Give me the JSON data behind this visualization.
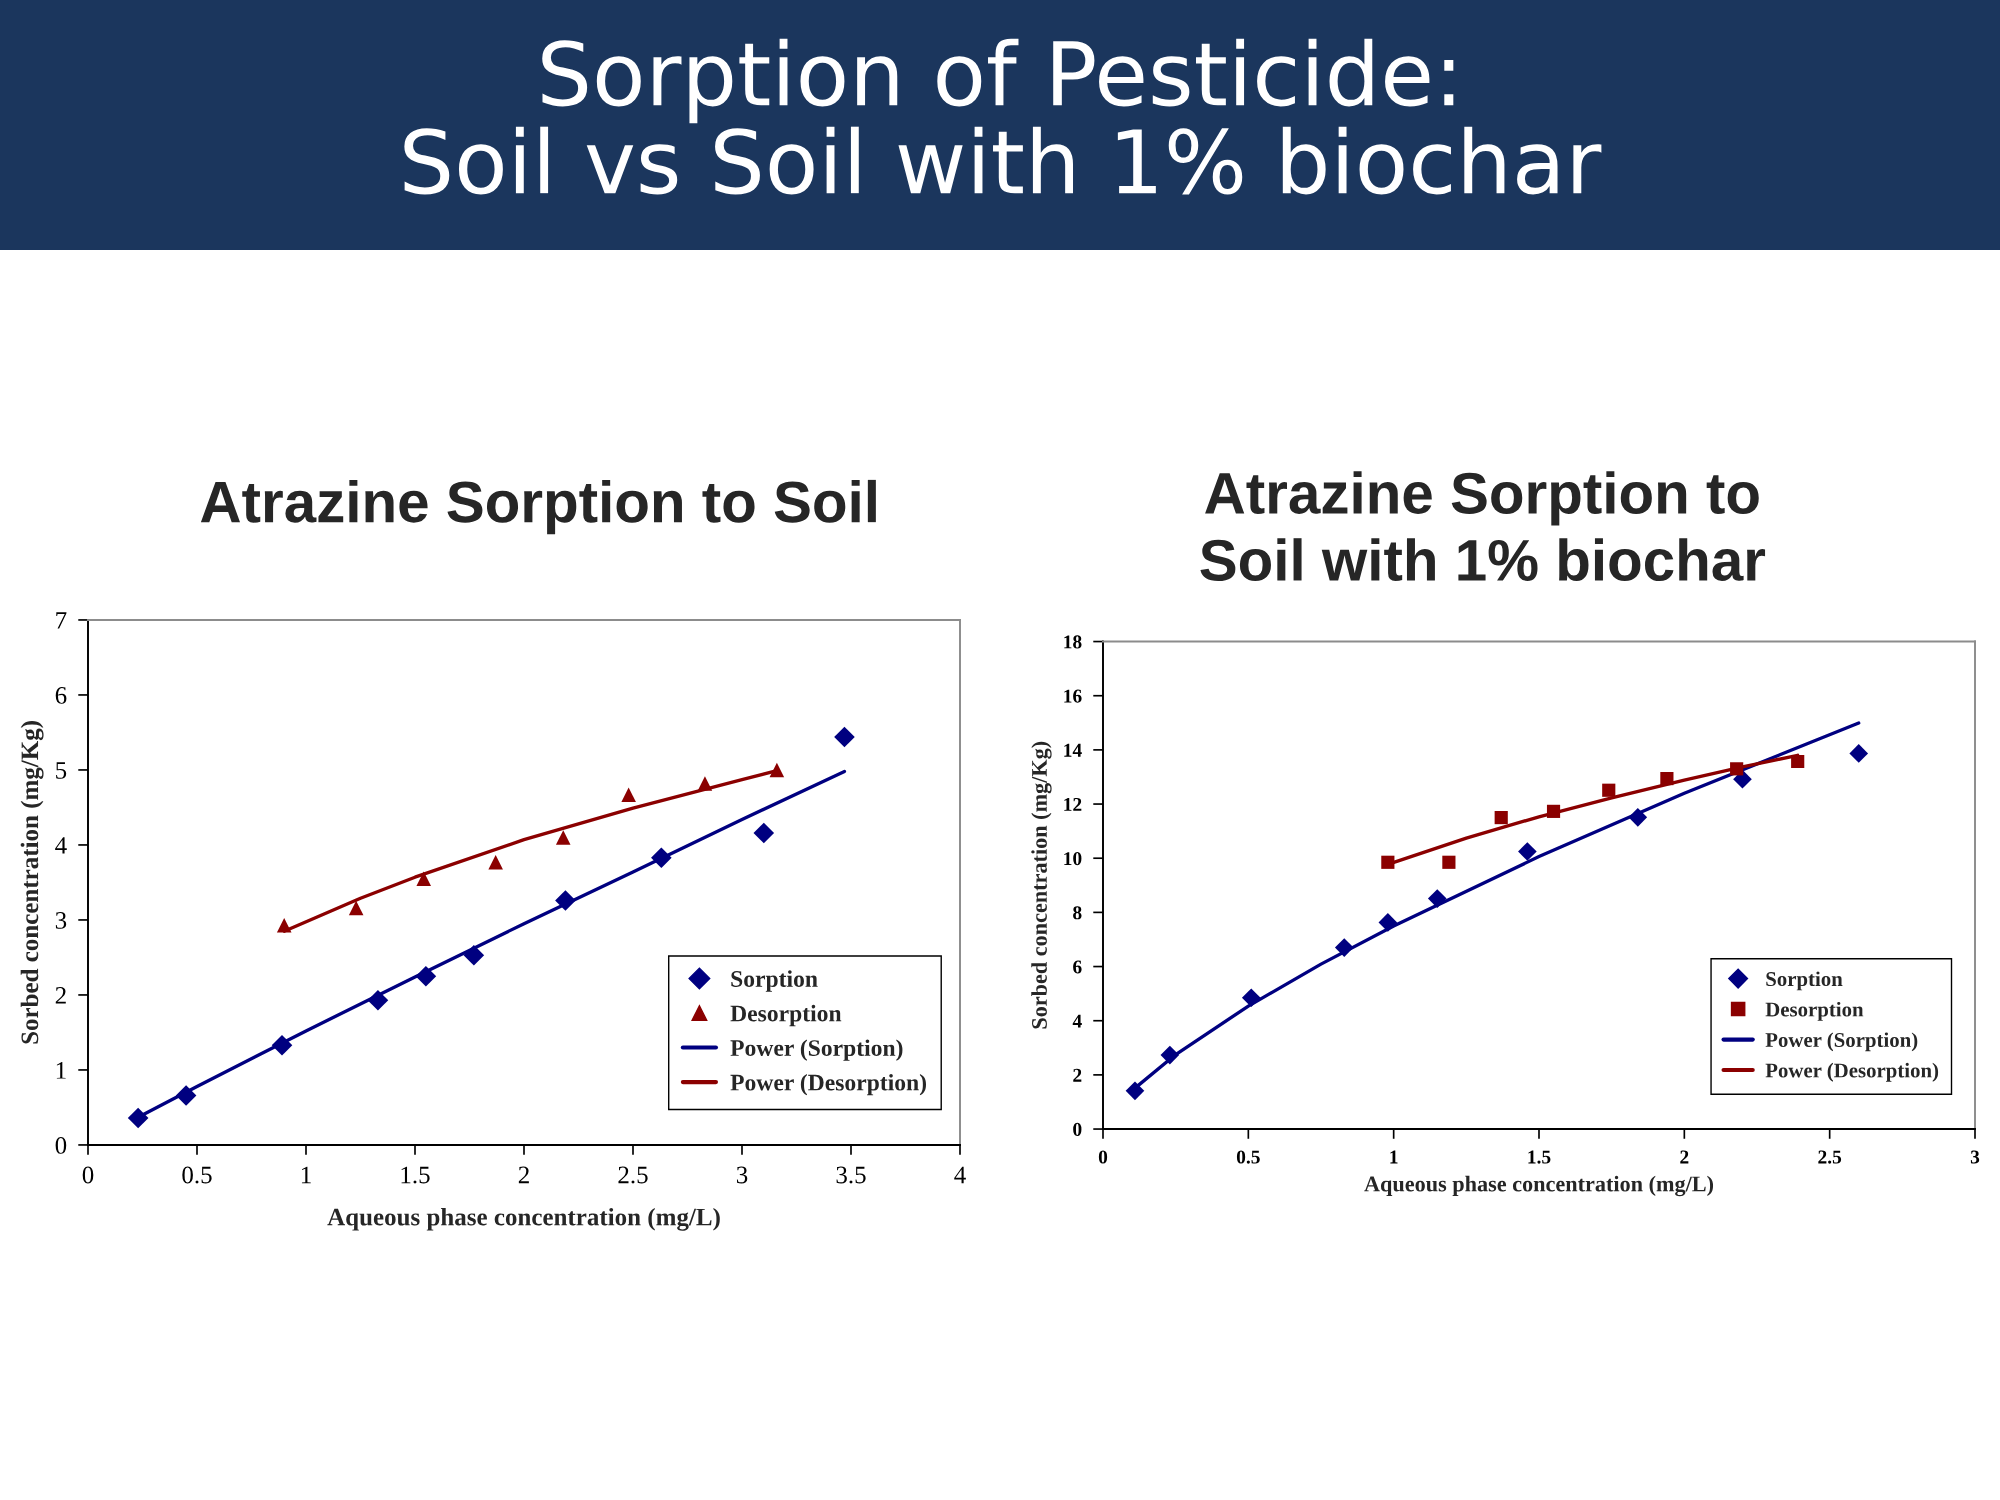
{
  "chart_data": [
    {
      "type": "other",
      "title": "Sorption of Pesticide:\nSoil vs Soil with 1% biochar"
    },
    {
      "type": "scatter",
      "title": "Atrazine Sorption to Soil",
      "xlabel": "Aqueous phase concentration (mg/L)",
      "ylabel": "Sorbed concentration (mg/Kg)",
      "xlim": [
        0,
        4
      ],
      "ylim": [
        0,
        7
      ],
      "xticks": [
        0,
        0.5,
        1,
        1.5,
        2,
        2.5,
        3,
        3.5,
        4
      ],
      "yticks": [
        0,
        1,
        2,
        3,
        4,
        5,
        6,
        7
      ],
      "grid": false,
      "legend": "bottom right",
      "series": [
        {
          "name": "Sorption",
          "type": "scatter",
          "marker": "diamond",
          "color": "#000080",
          "x": [
            0.23,
            0.45,
            0.89,
            1.33,
            1.55,
            1.77,
            2.19,
            2.63,
            3.1,
            3.47
          ],
          "values": [
            0.36,
            0.66,
            1.33,
            1.93,
            2.25,
            2.53,
            3.26,
            3.83,
            4.16,
            5.44
          ]
        },
        {
          "name": "Desorption",
          "type": "scatter",
          "marker": "triangle",
          "color": "#8b0000",
          "x": [
            0.9,
            1.23,
            1.54,
            1.87,
            2.18,
            2.48,
            2.83,
            3.16
          ],
          "values": [
            2.93,
            3.16,
            3.55,
            3.77,
            4.1,
            4.67,
            4.82,
            5.0
          ]
        },
        {
          "name": "Power (Sorption)",
          "type": "line",
          "marker": "none",
          "line_style": "solid",
          "color": "#000080",
          "x": [
            0.23,
            0.5,
            1,
            1.5,
            2,
            2.5,
            3,
            3.47
          ],
          "values": [
            0.37,
            0.78,
            1.52,
            2.24,
            2.95,
            3.64,
            4.34,
            4.98
          ]
        },
        {
          "name": "Power (Desorption)",
          "type": "line",
          "marker": "none",
          "line_style": "solid",
          "color": "#8b0000",
          "x": [
            0.9,
            1.25,
            1.5,
            2,
            2.5,
            3,
            3.16
          ],
          "values": [
            2.85,
            3.29,
            3.57,
            4.07,
            4.49,
            4.87,
            4.99
          ]
        }
      ]
    },
    {
      "type": "scatter",
      "title": "Atrazine Sorption to\nSoil with 1% biochar",
      "xlabel": "Aqueous phase concentration (mg/L)",
      "ylabel": "Sorbed concentration (mg/Kg)",
      "xlim": [
        0,
        3
      ],
      "ylim": [
        0,
        18
      ],
      "xticks": [
        0,
        0.5,
        1,
        1.5,
        2,
        2.5,
        3
      ],
      "yticks": [
        0,
        2,
        4,
        6,
        8,
        10,
        12,
        14,
        16,
        18
      ],
      "grid": false,
      "legend": "bottom right",
      "series": [
        {
          "name": "Sorption",
          "type": "scatter",
          "marker": "diamond",
          "color": "#000080",
          "x": [
            0.11,
            0.23,
            0.51,
            0.83,
            0.98,
            1.15,
            1.46,
            1.84,
            2.2,
            2.6
          ],
          "values": [
            1.41,
            2.73,
            4.85,
            6.7,
            7.63,
            8.51,
            10.25,
            11.51,
            12.92,
            13.87
          ]
        },
        {
          "name": "Desorption",
          "type": "scatter",
          "marker": "square",
          "color": "#8b0000",
          "x": [
            0.98,
            1.19,
            1.37,
            1.55,
            1.74,
            1.94,
            2.18,
            2.39
          ],
          "values": [
            9.85,
            9.85,
            11.5,
            11.73,
            12.51,
            12.94,
            13.3,
            13.57
          ]
        },
        {
          "name": "Power (Sorption)",
          "type": "line",
          "marker": "none",
          "line_style": "solid",
          "color": "#000080",
          "x": [
            0.11,
            0.25,
            0.5,
            0.75,
            1,
            1.5,
            2,
            2.6
          ],
          "values": [
            1.51,
            2.75,
            4.54,
            6.09,
            7.5,
            10.06,
            12.4,
            14.99
          ]
        },
        {
          "name": "Power (Desorption)",
          "type": "line",
          "marker": "none",
          "line_style": "solid",
          "color": "#8b0000",
          "x": [
            0.98,
            1.25,
            1.5,
            1.75,
            2,
            2.2,
            2.39
          ],
          "values": [
            9.77,
            10.74,
            11.53,
            12.23,
            12.88,
            13.37,
            13.8
          ]
        }
      ]
    }
  ]
}
